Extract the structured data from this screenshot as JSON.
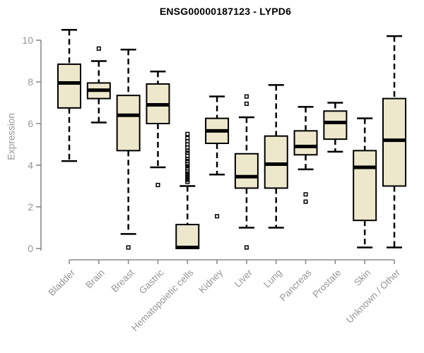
{
  "chart_data": {
    "type": "boxplot",
    "title": "ENSG00000187123 - LYPD6",
    "ylabel": "Expression",
    "xlabel": "",
    "ylim": [
      0,
      10
    ],
    "yticks": [
      0,
      2,
      4,
      6,
      8,
      10
    ],
    "grid": false,
    "legend": null,
    "colors": {
      "box_fill": "#EDE8CC",
      "box_stroke": "#000000",
      "axis": "#8A8A8A",
      "tick_label": "#969696",
      "title": "#000000"
    },
    "categories": [
      "Bladder",
      "Brain",
      "Breast",
      "Gastric",
      "Hematopoietic cells",
      "Kidney",
      "Liver",
      "Lung",
      "Pancreas",
      "Prostate",
      "Skin",
      "Unknown / Other"
    ],
    "series": [
      {
        "category": "Bladder",
        "whisker_low": 4.2,
        "q1": 6.75,
        "median": 7.95,
        "q3": 8.85,
        "whisker_high": 10.5,
        "outliers": []
      },
      {
        "category": "Brain",
        "whisker_low": 6.05,
        "q1": 7.2,
        "median": 7.6,
        "q3": 7.95,
        "whisker_high": 9.0,
        "outliers": [
          9.6
        ]
      },
      {
        "category": "Breast",
        "whisker_low": 0.7,
        "q1": 4.7,
        "median": 6.4,
        "q3": 7.35,
        "whisker_high": 9.55,
        "outliers": [
          0.05
        ]
      },
      {
        "category": "Gastric",
        "whisker_low": 3.9,
        "q1": 6.0,
        "median": 6.9,
        "q3": 7.9,
        "whisker_high": 8.5,
        "outliers": [
          3.05
        ]
      },
      {
        "category": "Hematopoietic cells",
        "whisker_low": 0.0,
        "q1": 0.0,
        "median": 0.05,
        "q3": 1.15,
        "whisker_high": 3.0,
        "outliers": [
          5.5,
          5.3,
          5.15,
          5.0,
          4.85,
          4.7,
          4.6,
          4.45,
          4.3,
          4.2,
          4.05,
          3.95,
          3.85,
          3.7,
          3.6,
          3.5,
          3.4,
          3.3,
          3.2
        ]
      },
      {
        "category": "Kidney",
        "whisker_low": 3.55,
        "q1": 5.05,
        "median": 5.65,
        "q3": 6.25,
        "whisker_high": 7.3,
        "outliers": [
          1.55
        ]
      },
      {
        "category": "Liver",
        "whisker_low": 1.0,
        "q1": 2.9,
        "median": 3.45,
        "q3": 4.55,
        "whisker_high": 6.3,
        "outliers": [
          7.3,
          6.95,
          0.05
        ]
      },
      {
        "category": "Lung",
        "whisker_low": 1.0,
        "q1": 2.9,
        "median": 4.05,
        "q3": 5.4,
        "whisker_high": 7.85,
        "outliers": []
      },
      {
        "category": "Pancreas",
        "whisker_low": 3.8,
        "q1": 4.5,
        "median": 4.9,
        "q3": 5.65,
        "whisker_high": 6.8,
        "outliers": [
          2.6,
          2.25
        ]
      },
      {
        "category": "Prostate",
        "whisker_low": 4.65,
        "q1": 5.25,
        "median": 6.05,
        "q3": 6.6,
        "whisker_high": 7.0,
        "outliers": []
      },
      {
        "category": "Skin",
        "whisker_low": 0.05,
        "q1": 1.35,
        "median": 3.9,
        "q3": 4.7,
        "whisker_high": 6.25,
        "outliers": []
      },
      {
        "category": "Unknown / Other",
        "whisker_low": 0.05,
        "q1": 3.0,
        "median": 5.2,
        "q3": 7.2,
        "whisker_high": 10.2,
        "outliers": []
      }
    ]
  }
}
